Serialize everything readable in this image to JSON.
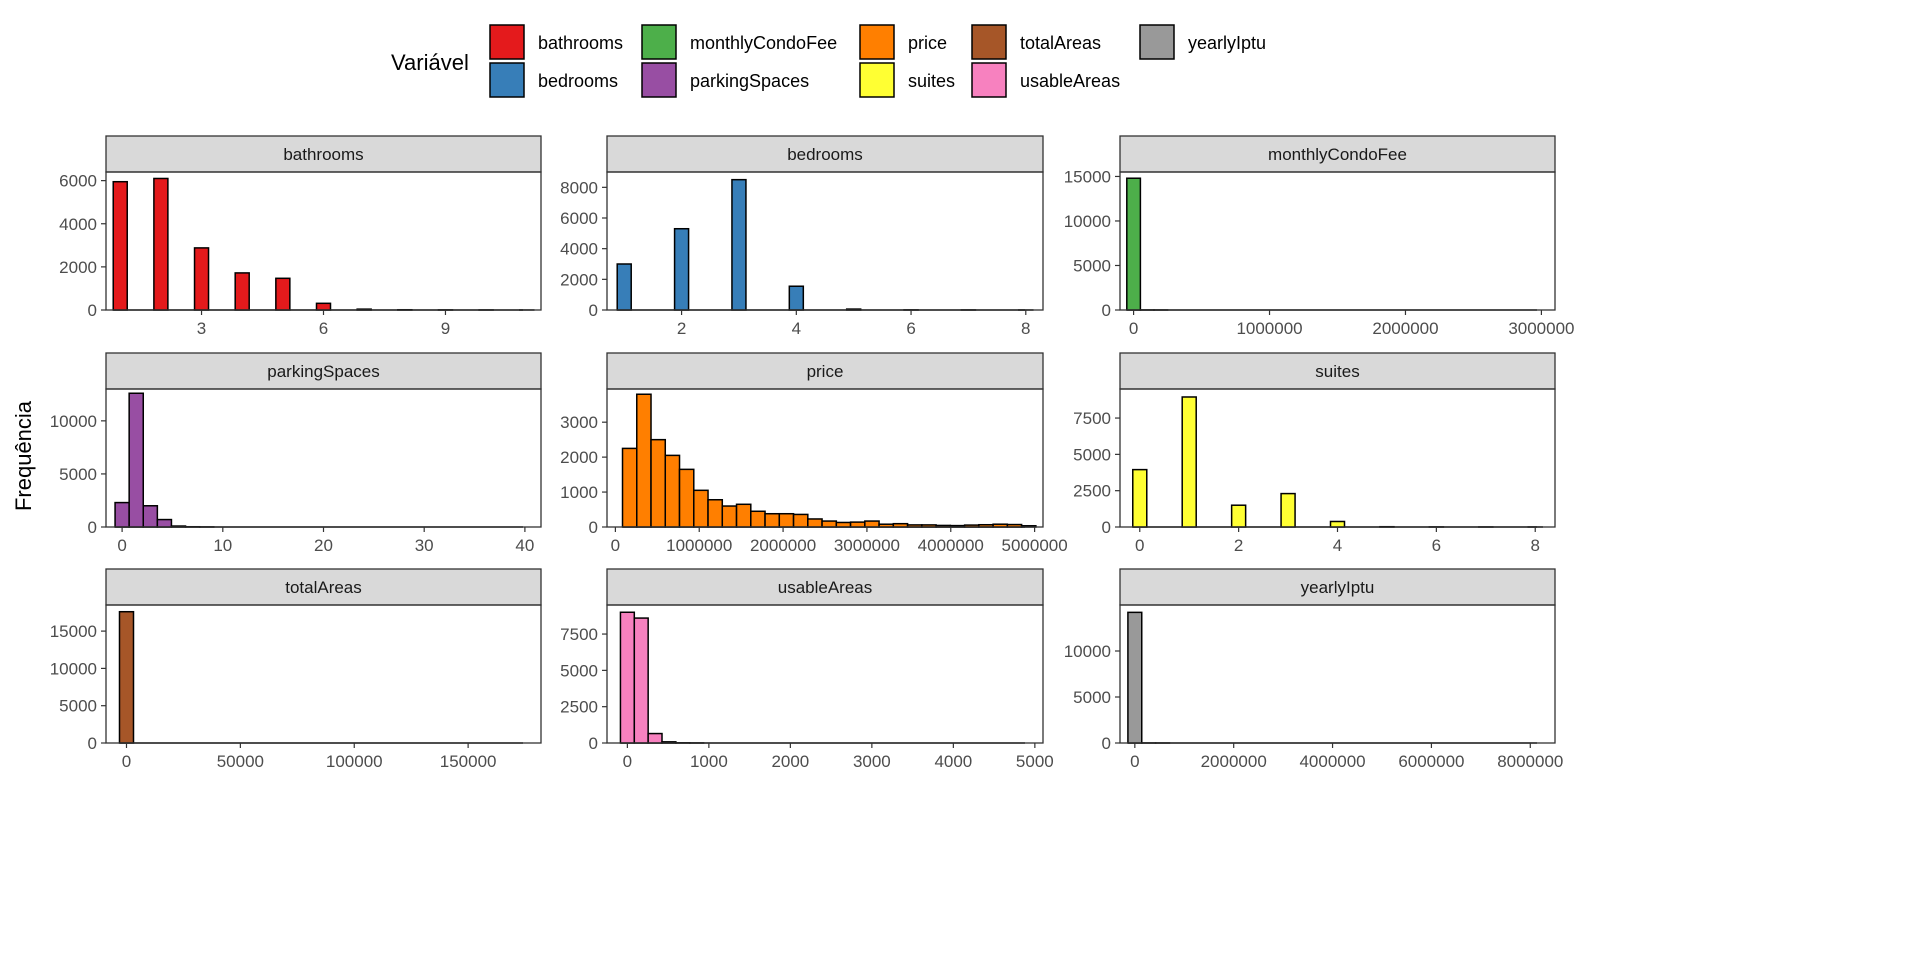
{
  "chart_data": {
    "type": "bar",
    "title": "",
    "ylabel": "Frequência",
    "legend": {
      "title": "Variável",
      "placement": "top",
      "items": [
        {
          "label": "bathrooms",
          "color": "#E41A1C"
        },
        {
          "label": "bedrooms",
          "color": "#377EB8"
        },
        {
          "label": "monthlyCondoFee",
          "color": "#4DAF4A"
        },
        {
          "label": "parkingSpaces",
          "color": "#984EA3"
        },
        {
          "label": "price",
          "color": "#FF7F00"
        },
        {
          "label": "suites",
          "color": "#FFFF33"
        },
        {
          "label": "totalAreas",
          "color": "#A65628"
        },
        {
          "label": "usableAreas",
          "color": "#F781BF"
        },
        {
          "label": "yearlyIptu",
          "color": "#999999"
        }
      ]
    },
    "panels": [
      {
        "name": "bathrooms",
        "color": "#E41A1C",
        "xlim": [
          0.65,
          11.35
        ],
        "ylim": [
          0,
          6400
        ],
        "xticks": [
          3,
          6,
          9
        ],
        "yticks": [
          0,
          2000,
          4000,
          6000
        ],
        "bars": [
          [
            1,
            5950
          ],
          [
            2,
            6100
          ],
          [
            3,
            2880
          ],
          [
            4,
            1720
          ],
          [
            5,
            1470
          ],
          [
            6,
            310
          ],
          [
            7,
            40
          ],
          [
            8,
            12
          ],
          [
            9,
            4
          ],
          [
            10,
            2
          ],
          [
            11,
            1
          ]
        ]
      },
      {
        "name": "bedrooms",
        "color": "#377EB8",
        "xlim": [
          0.7,
          8.3
        ],
        "ylim": [
          0,
          9000
        ],
        "xticks": [
          2,
          4,
          6,
          8
        ],
        "yticks": [
          0,
          2000,
          4000,
          6000,
          8000
        ],
        "bars": [
          [
            1,
            3000
          ],
          [
            2,
            5300
          ],
          [
            3,
            8500
          ],
          [
            4,
            1550
          ],
          [
            5,
            60
          ],
          [
            6,
            8
          ],
          [
            7,
            3
          ],
          [
            8,
            1
          ]
        ]
      },
      {
        "name": "monthlyCondoFee",
        "color": "#4DAF4A",
        "xlim": [
          -100000,
          3100000
        ],
        "ylim": [
          0,
          15500
        ],
        "xticks": [
          0,
          1000000,
          2000000,
          3000000
        ],
        "yticks": [
          0,
          5000,
          10000,
          15000
        ],
        "bars": [
          [
            0,
            14800
          ],
          [
            100000,
            5
          ],
          [
            200000,
            2
          ]
        ]
      },
      {
        "name": "parkingSpaces",
        "color": "#984EA3",
        "xlim": [
          -1.6,
          41.6
        ],
        "ylim": [
          0,
          13000
        ],
        "xticks": [
          0,
          10,
          20,
          30,
          40
        ],
        "yticks": [
          0,
          5000,
          10000
        ],
        "bars": [
          [
            0,
            2300
          ],
          [
            1.4,
            12600
          ],
          [
            2.8,
            2000
          ],
          [
            4.2,
            700
          ],
          [
            5.6,
            90
          ],
          [
            7,
            25
          ],
          [
            8.4,
            8
          ]
        ]
      },
      {
        "name": "price",
        "color": "#FF7F00",
        "xlim": [
          -100000,
          5100000
        ],
        "ylim": [
          0,
          3950
        ],
        "xticks": [
          0,
          1000000,
          2000000,
          3000000,
          4000000,
          5000000
        ],
        "yticks": [
          0,
          1000,
          2000,
          3000
        ],
        "bars": [
          [
            170000,
            2250
          ],
          [
            340000,
            3800
          ],
          [
            510000,
            2500
          ],
          [
            680000,
            2050
          ],
          [
            850000,
            1650
          ],
          [
            1020000,
            1050
          ],
          [
            1190000,
            780
          ],
          [
            1360000,
            600
          ],
          [
            1530000,
            650
          ],
          [
            1700000,
            450
          ],
          [
            1870000,
            380
          ],
          [
            2040000,
            380
          ],
          [
            2210000,
            360
          ],
          [
            2380000,
            230
          ],
          [
            2550000,
            170
          ],
          [
            2720000,
            130
          ],
          [
            2890000,
            140
          ],
          [
            3060000,
            170
          ],
          [
            3230000,
            80
          ],
          [
            3400000,
            95
          ],
          [
            3570000,
            60
          ],
          [
            3740000,
            60
          ],
          [
            3910000,
            45
          ],
          [
            4080000,
            40
          ],
          [
            4250000,
            55
          ],
          [
            4420000,
            65
          ],
          [
            4590000,
            80
          ],
          [
            4760000,
            70
          ],
          [
            4930000,
            35
          ]
        ]
      },
      {
        "name": "suites",
        "color": "#FFFF33",
        "xlim": [
          -0.4,
          8.4
        ],
        "ylim": [
          0,
          9500
        ],
        "xticks": [
          0,
          2,
          4,
          6,
          8
        ],
        "yticks": [
          0,
          2500,
          5000,
          7500
        ],
        "bars": [
          [
            0,
            3950
          ],
          [
            1,
            8950
          ],
          [
            2,
            1500
          ],
          [
            3,
            2300
          ],
          [
            4,
            380
          ],
          [
            5,
            20
          ],
          [
            6,
            5
          ],
          [
            7,
            2
          ],
          [
            8,
            1
          ]
        ]
      },
      {
        "name": "totalAreas",
        "color": "#A65628",
        "xlim": [
          -9000,
          182000
        ],
        "ylim": [
          0,
          18500
        ],
        "xticks": [
          0,
          50000,
          100000,
          150000
        ],
        "yticks": [
          0,
          5000,
          10000,
          15000
        ],
        "bars": [
          [
            0,
            17600
          ]
        ]
      },
      {
        "name": "usableAreas",
        "color": "#F781BF",
        "xlim": [
          -250,
          5100
        ],
        "ylim": [
          0,
          9500
        ],
        "xticks": [
          0,
          1000,
          2000,
          3000,
          4000,
          5000
        ],
        "yticks": [
          0,
          2500,
          5000,
          7500
        ],
        "bars": [
          [
            0,
            9000
          ],
          [
            170,
            8600
          ],
          [
            340,
            650
          ],
          [
            510,
            80
          ],
          [
            680,
            15
          ],
          [
            850,
            5
          ]
        ]
      },
      {
        "name": "yearlyIptu",
        "color": "#999999",
        "xlim": [
          -300000,
          8500000
        ],
        "ylim": [
          0,
          15000
        ],
        "xticks": [
          0,
          2000000,
          4000000,
          6000000,
          8000000
        ],
        "yticks": [
          0,
          5000,
          10000
        ],
        "bars": [
          [
            0,
            14200
          ],
          [
            280000,
            3
          ],
          [
            560000,
            1
          ]
        ]
      }
    ]
  }
}
